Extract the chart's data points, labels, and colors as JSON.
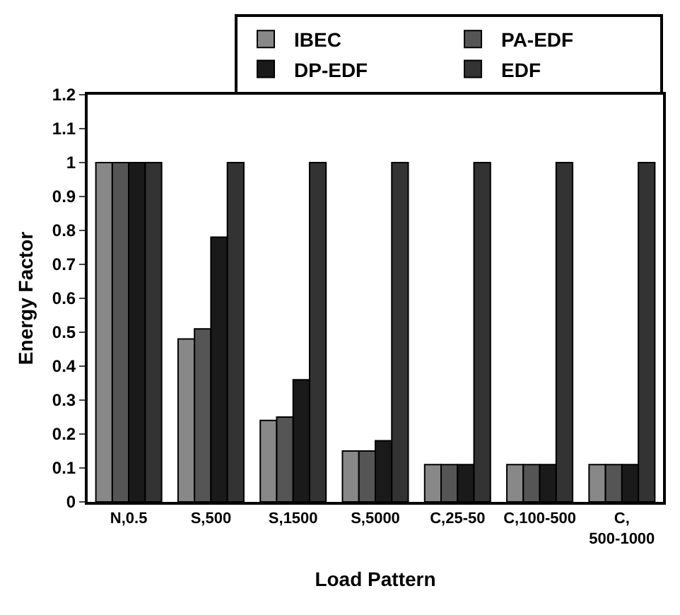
{
  "chart_data": {
    "type": "bar",
    "xlabel": "Load Pattern",
    "ylabel": "Energy Factor",
    "categories": [
      "N,0.5",
      "S,500",
      "S,1500",
      "S,5000",
      "C,25-50",
      "C,100-500",
      "C, 500-1000"
    ],
    "series": [
      {
        "name": "IBEC",
        "color": "#888888",
        "values": [
          1,
          0.48,
          0.24,
          0.15,
          0.11,
          0.11,
          0.11
        ]
      },
      {
        "name": "PA-EDF",
        "color": "#555555",
        "values": [
          1,
          0.51,
          0.25,
          0.15,
          0.11,
          0.11,
          0.11
        ]
      },
      {
        "name": "DP-EDF",
        "color": "#1a1a1a",
        "values": [
          1,
          0.78,
          0.36,
          0.18,
          0.11,
          0.11,
          0.11
        ]
      },
      {
        "name": "EDF",
        "color": "#333333",
        "values": [
          1,
          1,
          1,
          1,
          1,
          1,
          1
        ]
      }
    ],
    "ylim": [
      0,
      1.2
    ],
    "yticks": [
      0,
      0.1,
      0.2,
      0.3,
      0.4,
      0.5,
      0.6,
      0.7,
      0.8,
      0.9,
      1,
      1.1,
      1.2
    ],
    "grid": false,
    "legend": "top right"
  }
}
